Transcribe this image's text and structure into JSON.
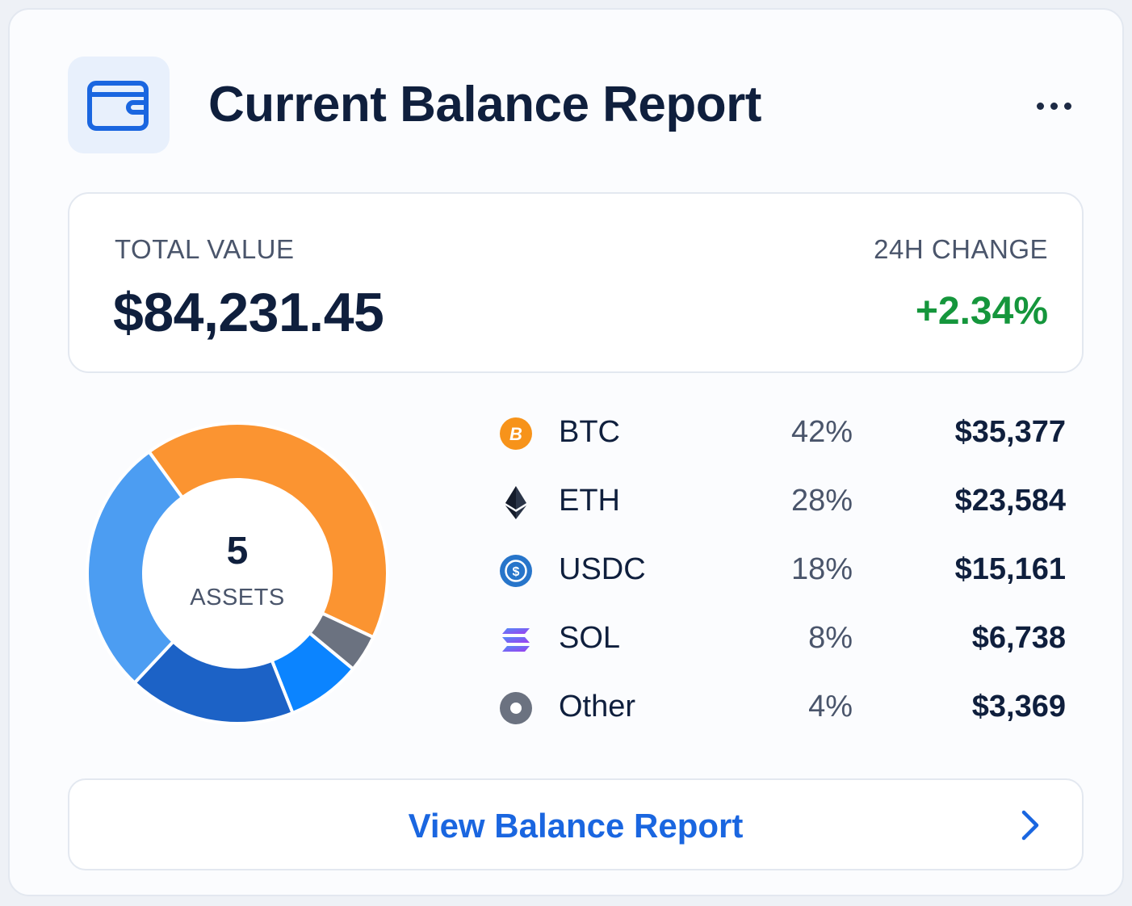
{
  "header": {
    "title": "Current Balance Report",
    "icon": "wallet-icon",
    "menu_icon": "more-horizontal-icon"
  },
  "summary": {
    "total_label": "TOTAL VALUE",
    "total_value": "$84,231.45",
    "change_label": "24H CHANGE",
    "change_value": "+2.34%",
    "change_color": "#15963c"
  },
  "donut": {
    "count": "5",
    "count_label": "ASSETS"
  },
  "chart_data": {
    "type": "pie",
    "categories": [
      "BTC",
      "ETH",
      "USDC",
      "SOL",
      "Other"
    ],
    "values": [
      42,
      28,
      18,
      8,
      4
    ],
    "colors": [
      "#fb9431",
      "#4c9df2",
      "#1c62c6",
      "#0b84ff",
      "#6b7280"
    ]
  },
  "assets": [
    {
      "symbol": "BTC",
      "percent": "42%",
      "amount": "$35,377",
      "icon": "bitcoin-icon",
      "color": "#f7931a"
    },
    {
      "symbol": "ETH",
      "percent": "28%",
      "amount": "$23,584",
      "icon": "ethereum-icon",
      "color": "#1c2333"
    },
    {
      "symbol": "USDC",
      "percent": "18%",
      "amount": "$15,161",
      "icon": "usdc-icon",
      "color": "#2775ca"
    },
    {
      "symbol": "SOL",
      "percent": "8%",
      "amount": "$6,738",
      "icon": "solana-icon",
      "color": "#8a4dfc"
    },
    {
      "symbol": "Other",
      "percent": "4%",
      "amount": "$3,369",
      "icon": "other-coin-icon",
      "color": "#6b7280"
    }
  ],
  "cta": {
    "label": "View Balance Report",
    "icon": "chevron-right-icon",
    "color": "#1a66e0"
  }
}
